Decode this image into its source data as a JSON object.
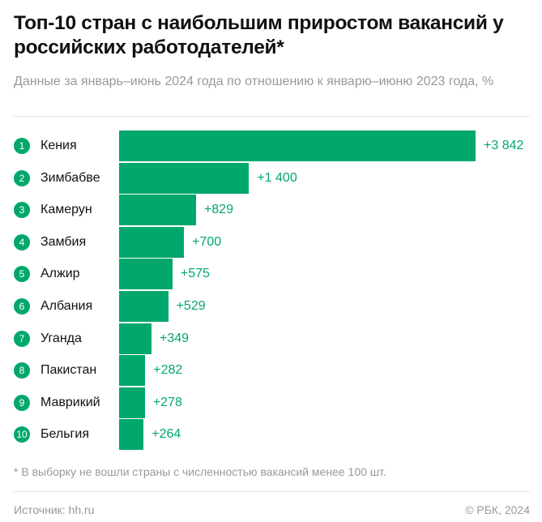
{
  "title": "Топ-10 стран с наибольшим приростом вакансий у российских работодателей*",
  "subtitle": "Данные за январь–июнь 2024 года по отношению к январю–июню 2023 года, %",
  "note": "* В выборку не вошли страны с численностью вакансий менее 100 шт.",
  "source": "Источник: hh.ru",
  "copyright": "© РБК, 2024",
  "colors": {
    "accent": "#00a86b"
  },
  "chart_data": {
    "type": "bar",
    "orientation": "horizontal",
    "ranks": [
      "1",
      "2",
      "3",
      "4",
      "5",
      "6",
      "7",
      "8",
      "9",
      "10"
    ],
    "categories": [
      "Кения",
      "Зимбабве",
      "Камерун",
      "Замбия",
      "Алжир",
      "Албания",
      "Уганда",
      "Пакистан",
      "Маврикий",
      "Бельгия"
    ],
    "values": [
      3842,
      1400,
      829,
      700,
      575,
      529,
      349,
      282,
      278,
      264
    ],
    "labels": [
      "+3 842",
      "+1 400",
      "+829",
      "+700",
      "+575",
      "+529",
      "+349",
      "+282",
      "+278",
      "+264"
    ],
    "xlim": [
      0,
      3842
    ],
    "grid": false
  }
}
